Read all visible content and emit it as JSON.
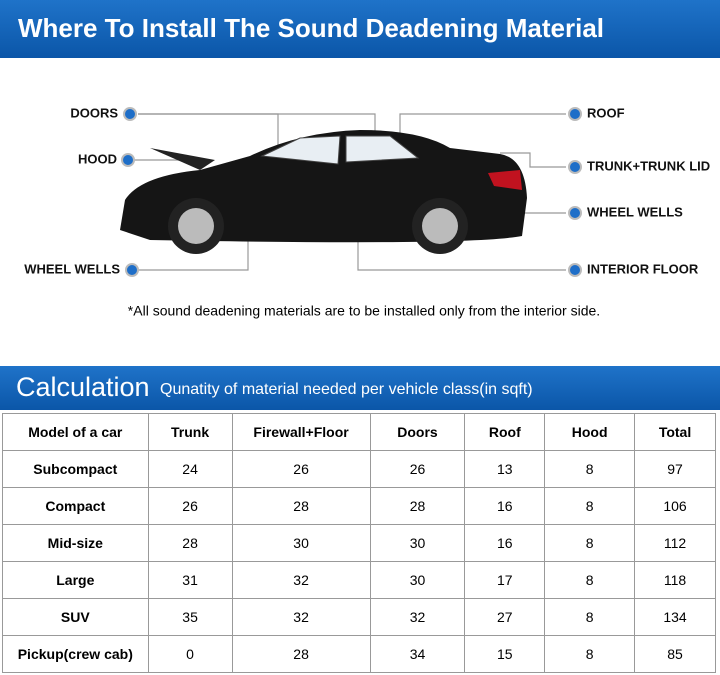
{
  "header": {
    "title": "Where To Install The Sound Deadening Material"
  },
  "diagram": {
    "labels": [
      "DOORS",
      "HOOD",
      "WHEEL WELLS",
      "ROOF",
      "TRUNK+TRUNK LID",
      "WHEEL WELLS",
      "INTERIOR FLOOR"
    ],
    "note": "*All sound deadening materials are to be installed only from the interior side."
  },
  "calculation": {
    "title": "Calculation",
    "subtitle": "Qunatity of material needed per vehicle class(in sqft)"
  },
  "table": {
    "columns": [
      "Model of a car",
      "Trunk",
      "Firewall+Floor",
      "Doors",
      "Roof",
      "Hood",
      "Total"
    ],
    "rows": [
      [
        "Subcompact",
        24,
        26,
        26,
        13,
        8,
        97
      ],
      [
        "Compact",
        26,
        28,
        28,
        16,
        8,
        106
      ],
      [
        "Mid-size",
        28,
        30,
        30,
        16,
        8,
        112
      ],
      [
        "Large",
        31,
        32,
        30,
        17,
        8,
        118
      ],
      [
        "SUV",
        35,
        32,
        32,
        27,
        8,
        134
      ],
      [
        "Pickup(crew cab)",
        0,
        28,
        34,
        15,
        8,
        85
      ]
    ]
  }
}
